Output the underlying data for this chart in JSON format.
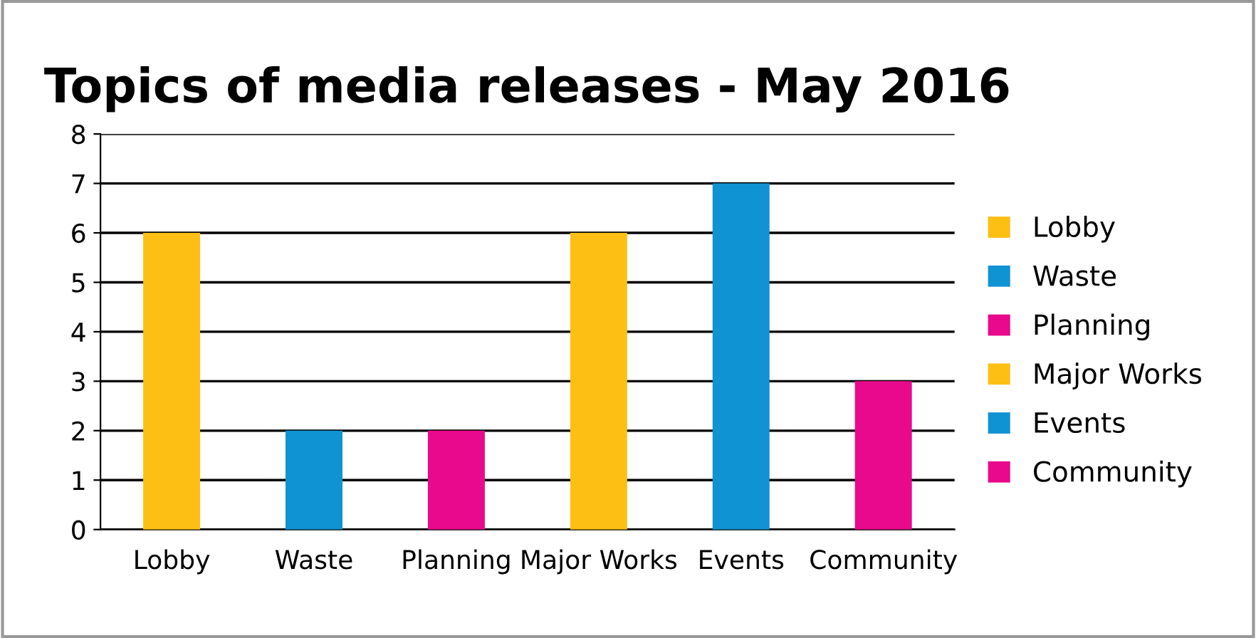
{
  "chart_data": {
    "type": "bar",
    "title": "Topics of media releases - May 2016",
    "categories": [
      "Lobby",
      "Waste",
      "Planning",
      "Major Works",
      "Events",
      "Community"
    ],
    "series": [
      {
        "name": "Lobby",
        "color": "#fdbf14",
        "values": [
          6,
          null,
          null,
          null,
          null,
          null
        ]
      },
      {
        "name": "Waste",
        "color": "#0f93d2",
        "values": [
          null,
          2,
          null,
          null,
          null,
          null
        ]
      },
      {
        "name": "Planning",
        "color": "#e8098c",
        "values": [
          null,
          null,
          2,
          null,
          null,
          null
        ]
      },
      {
        "name": "Major Works",
        "color": "#fdbf14",
        "values": [
          null,
          null,
          null,
          6,
          null,
          null
        ]
      },
      {
        "name": "Events",
        "color": "#0f93d2",
        "values": [
          null,
          null,
          null,
          null,
          7,
          null
        ]
      },
      {
        "name": "Community",
        "color": "#e8098c",
        "values": [
          null,
          null,
          null,
          null,
          null,
          3
        ]
      }
    ],
    "ylim": [
      0,
      8
    ],
    "yticks": [
      0,
      1,
      2,
      3,
      4,
      5,
      6,
      7,
      8
    ],
    "grid": "y",
    "legend": "right"
  }
}
